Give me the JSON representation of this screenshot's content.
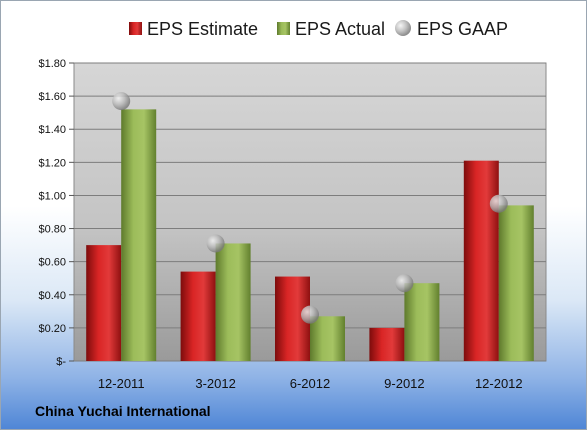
{
  "company_name": "China Yuchai International",
  "chart_data": {
    "type": "bar",
    "categories": [
      "12-2011",
      "3-2012",
      "6-2012",
      "9-2012",
      "12-2012"
    ],
    "series": [
      {
        "name": "EPS Estimate",
        "type": "bar",
        "color": "#cc1f1f",
        "values": [
          0.7,
          0.54,
          0.51,
          0.2,
          1.21
        ]
      },
      {
        "name": "EPS Actual",
        "type": "bar",
        "color": "#8aa84b",
        "values": [
          1.52,
          0.71,
          0.27,
          0.47,
          0.94
        ]
      },
      {
        "name": "EPS GAAP",
        "type": "marker",
        "color": "#b0b0b0",
        "values": [
          1.57,
          0.71,
          0.28,
          0.47,
          0.95
        ]
      }
    ],
    "ylim": [
      0,
      1.8
    ],
    "yticks": [
      0,
      0.2,
      0.4,
      0.6,
      0.8,
      1.0,
      1.2,
      1.4,
      1.6,
      1.8
    ],
    "ytick_labels": [
      "$-",
      "$0.20",
      "$0.40",
      "$0.60",
      "$0.80",
      "$1.00",
      "$1.20",
      "$1.40",
      "$1.60",
      "$1.80"
    ],
    "grid": true,
    "legend_position": "top"
  }
}
